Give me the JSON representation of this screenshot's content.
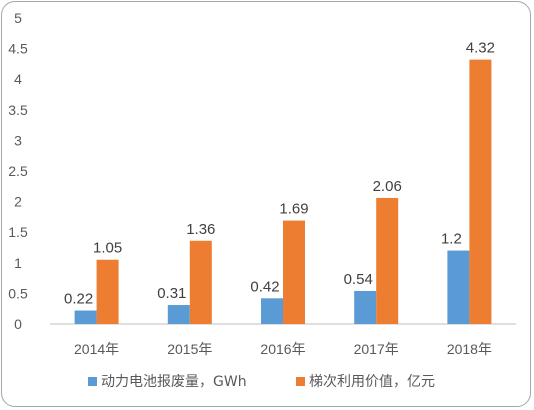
{
  "chart_data": {
    "type": "bar",
    "title": "",
    "xlabel": "",
    "ylabel": "",
    "categories": [
      "2014年",
      "2015年",
      "2016年",
      "2017年",
      "2018年"
    ],
    "series": [
      {
        "name": "动力电池报废量，GWh",
        "values": [
          0.22,
          0.31,
          0.42,
          0.54,
          1.2
        ],
        "labels": [
          "0.22",
          "0.31",
          "0.42",
          "0.54",
          "1.2"
        ],
        "color": "#5b9bd5"
      },
      {
        "name": "梯次利用价值，亿元",
        "values": [
          1.05,
          1.36,
          1.69,
          2.06,
          4.32
        ],
        "labels": [
          "1.05",
          "1.36",
          "1.69",
          "2.06",
          "4.32"
        ],
        "color": "#ed7d31"
      }
    ],
    "ylim": [
      0,
      5
    ],
    "yticks": [
      "0",
      "0.5",
      "1",
      "1.5",
      "2",
      "2.5",
      "3",
      "3.5",
      "4",
      "4.5",
      "5"
    ],
    "grid": false,
    "legend_position": "bottom"
  }
}
